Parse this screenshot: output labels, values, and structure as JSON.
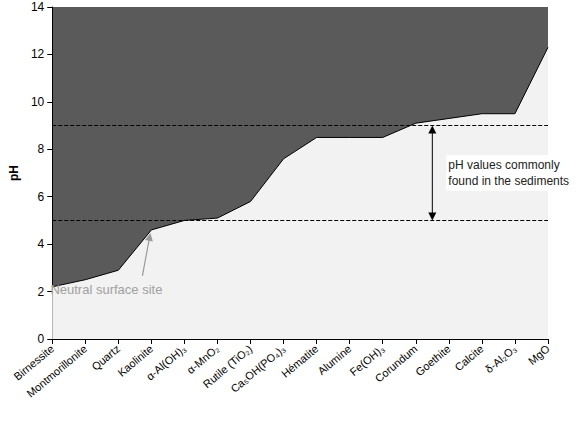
{
  "chart_data": {
    "type": "area",
    "categories": [
      "Birnessite",
      "Montmorillonite",
      "Quartz",
      "Kaolinite",
      "α-Al(OH)₃",
      "α-MnO₂",
      "Rutile (TiO₂)",
      "Ca₅OH(PO₄)₃",
      "Hématite",
      "Alumine",
      "Fe(OH)₃",
      "Corundum",
      "Goethite",
      "Calcite",
      "δ-Al₂O₃",
      "MgO"
    ],
    "values": [
      2.2,
      2.5,
      2.9,
      4.6,
      5.0,
      5.1,
      5.8,
      7.6,
      8.5,
      8.5,
      8.5,
      9.1,
      9.3,
      9.5,
      9.5,
      12.3
    ],
    "color": "#f2f2f2",
    "ylabel": "pH",
    "ylim": [
      0,
      14
    ],
    "yticks": [
      0,
      2,
      4,
      6,
      8,
      10,
      12,
      14
    ],
    "grid": false,
    "hlines": [
      5,
      9
    ],
    "annotations": [
      {
        "text": "pH values commonly found in the sediments",
        "between": [
          5,
          9
        ]
      },
      {
        "text": "Neutral surface site",
        "target": "Kaolinite"
      }
    ]
  }
}
